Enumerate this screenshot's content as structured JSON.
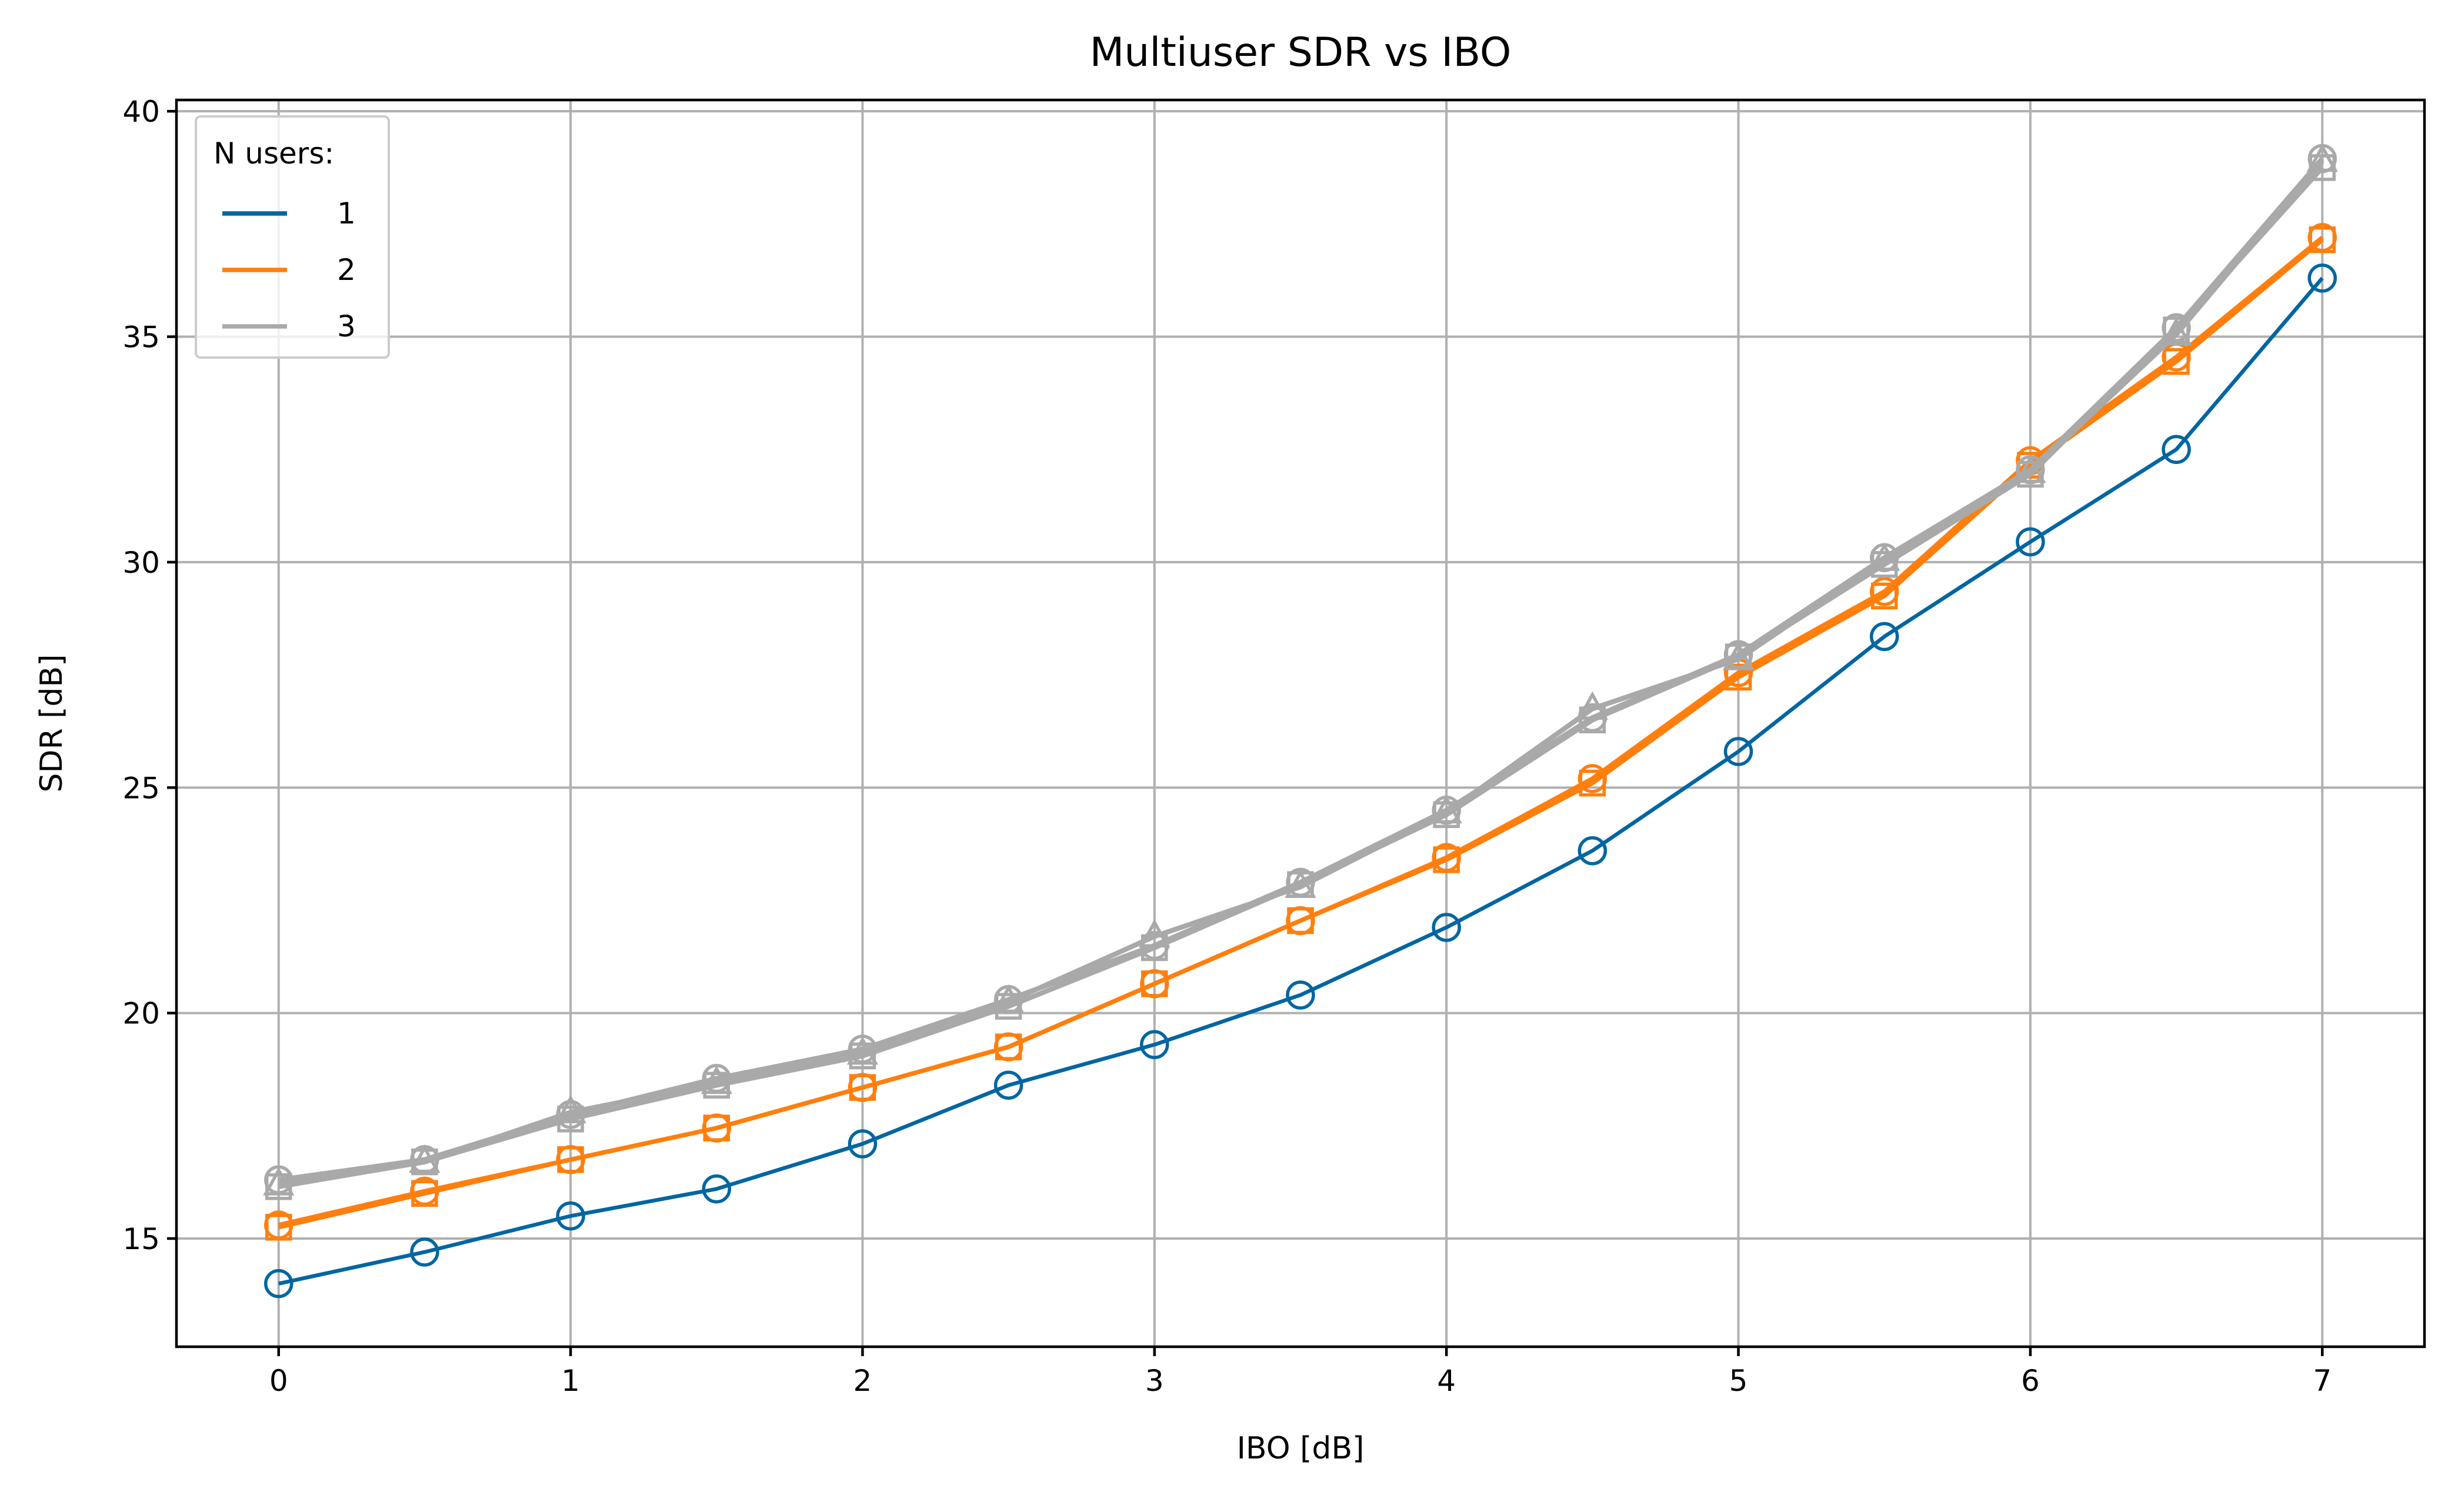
{
  "chart_data": {
    "type": "line",
    "title": "Multiuser SDR vs IBO",
    "xlabel": "IBO [dB]",
    "ylabel": "SDR [dB]",
    "xlim": [
      -0.35,
      7.35
    ],
    "ylim": [
      12.6,
      40.25
    ],
    "x_ticks": [
      0,
      1,
      2,
      3,
      4,
      5,
      6,
      7
    ],
    "y_ticks": [
      15,
      20,
      25,
      30,
      35,
      40
    ],
    "grid": true,
    "legend": {
      "title": "N users:",
      "position": "top-left"
    },
    "x": [
      0,
      0.5,
      1,
      1.5,
      2,
      2.5,
      3,
      3.5,
      4,
      4.5,
      5,
      5.5,
      6,
      6.5,
      7
    ],
    "series": [
      {
        "name": "1",
        "color": "#0066a1",
        "values": [
          14.0,
          14.7,
          15.5,
          16.1,
          17.1,
          18.4,
          19.3,
          20.4,
          21.9,
          23.6,
          25.8,
          28.35,
          30.45,
          32.5,
          36.3
        ],
        "users": [
          {
            "marker": "circle",
            "values": [
              14.0,
              14.7,
              15.5,
              16.1,
              17.1,
              18.4,
              19.3,
              20.4,
              21.9,
              23.6,
              25.8,
              28.35,
              30.45,
              32.5,
              36.3
            ]
          }
        ]
      },
      {
        "name": "2",
        "color": "#ff7f0e",
        "values": [
          15.3,
          16.05,
          16.75,
          17.45,
          18.35,
          19.25,
          20.65,
          22.05,
          23.45,
          25.15,
          27.5,
          29.3,
          32.2,
          34.5,
          37.2
        ],
        "users": [
          {
            "marker": "circle",
            "values": [
              15.3,
              16.05,
              16.75,
              17.45,
              18.35,
              19.25,
              20.65,
              22.05,
              23.45,
              25.2,
              27.55,
              29.35,
              32.25,
              34.55,
              37.2
            ]
          },
          {
            "marker": "square",
            "values": [
              15.25,
              16.0,
              16.75,
              17.45,
              18.35,
              19.25,
              20.65,
              22.05,
              23.4,
              25.1,
              27.45,
              29.25,
              32.15,
              34.45,
              37.15
            ]
          }
        ]
      },
      {
        "name": "3",
        "color": "#a9a9a9",
        "values": [
          16.25,
          16.7,
          17.7,
          18.45,
          19.1,
          20.25,
          21.55,
          22.85,
          24.45,
          26.6,
          27.9,
          30.05,
          32.0,
          35.1,
          38.8
        ],
        "users": [
          {
            "marker": "circle",
            "values": [
              16.3,
              16.75,
              17.75,
              18.55,
              19.2,
              20.3,
              21.5,
              22.9,
              24.5,
              26.55,
              27.95,
              30.1,
              32.05,
              35.2,
              38.95
            ]
          },
          {
            "marker": "triangle",
            "values": [
              16.2,
              16.7,
              17.8,
              18.45,
              19.1,
              20.25,
              21.7,
              22.8,
              24.45,
              26.75,
              27.85,
              30.05,
              32.0,
              35.05,
              38.9
            ]
          },
          {
            "marker": "square",
            "values": [
              16.15,
              16.7,
              17.65,
              18.4,
              19.05,
              20.15,
              21.45,
              22.85,
              24.4,
              26.5,
              27.9,
              29.95,
              31.95,
              35.15,
              38.75
            ]
          }
        ]
      }
    ]
  }
}
